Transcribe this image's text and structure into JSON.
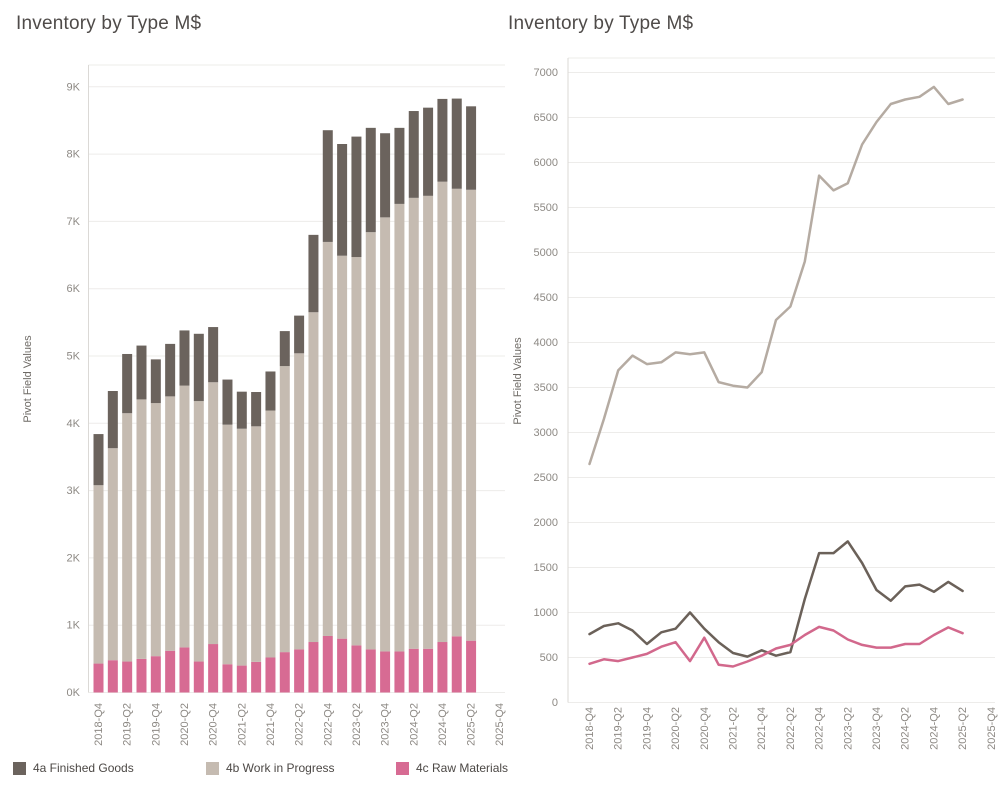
{
  "left_chart": {
    "title": "Inventory by Type M$",
    "y_axis_title": "Pivot Field Values"
  },
  "right_chart": {
    "title": "Inventory by Type M$",
    "y_axis_title": "Pivot Field Values"
  },
  "legend": {
    "items": [
      {
        "label": "4a Finished Goods",
        "color": "#6b635d"
      },
      {
        "label": "4b Work in Progress",
        "color": "#c5bbb1"
      },
      {
        "label": "4c Raw Materials",
        "color": "#d76b93"
      }
    ]
  },
  "chart_data": [
    {
      "type": "bar",
      "stacked": true,
      "title": "Inventory by Type M$",
      "xlabel": "",
      "ylabel": "Pivot Field Values",
      "grid": true,
      "ylim": [
        0,
        9000
      ],
      "ytick_step": 1000,
      "ytick_format": "K",
      "categories": [
        "2018-Q4",
        "2019-Q1",
        "2019-Q2",
        "2019-Q3",
        "2019-Q4",
        "2020-Q1",
        "2020-Q2",
        "2020-Q3",
        "2020-Q4",
        "2021-Q1",
        "2021-Q2",
        "2021-Q3",
        "2021-Q4",
        "2022-Q1",
        "2022-Q2",
        "2022-Q3",
        "2022-Q4",
        "2023-Q1",
        "2023-Q2",
        "2023-Q3",
        "2023-Q4",
        "2024-Q1",
        "2024-Q2",
        "2024-Q3",
        "2024-Q4",
        "2025-Q1",
        "2025-Q2"
      ],
      "axis_extra_categories": [
        "2025-Q3",
        "2025-Q4"
      ],
      "x_labels_every": 2,
      "stack_order_bottom_to_top": [
        "4c Raw Materials",
        "4b Work in Progress",
        "4a Finished Goods"
      ],
      "series": [
        {
          "name": "4a Finished Goods",
          "color": "#6b635d",
          "values": [
            760,
            850,
            880,
            800,
            650,
            780,
            820,
            1000,
            820,
            670,
            550,
            510,
            580,
            520,
            560,
            1150,
            1660,
            1660,
            1790,
            1550,
            1250,
            1130,
            1290,
            1310,
            1230,
            1340,
            1240
          ]
        },
        {
          "name": "4b Work in Progress",
          "color": "#c5bbb1",
          "values": [
            2650,
            3150,
            3690,
            3855,
            3760,
            3780,
            3890,
            3870,
            3890,
            3560,
            3520,
            3500,
            3670,
            4250,
            4400,
            4900,
            5855,
            5690,
            5770,
            6200,
            6450,
            6650,
            6700,
            6730,
            6840,
            6650,
            6700
          ]
        },
        {
          "name": "4c Raw Materials",
          "color": "#d76b93",
          "values": [
            430,
            480,
            460,
            500,
            540,
            620,
            670,
            460,
            720,
            420,
            400,
            455,
            520,
            600,
            640,
            750,
            840,
            800,
            700,
            640,
            610,
            610,
            650,
            650,
            750,
            835,
            770
          ]
        }
      ]
    },
    {
      "type": "line",
      "title": "Inventory by Type M$",
      "xlabel": "",
      "ylabel": "Pivot Field Values",
      "grid": true,
      "ylim": [
        0,
        7000
      ],
      "ytick_step": 500,
      "categories": [
        "2018-Q4",
        "2019-Q1",
        "2019-Q2",
        "2019-Q3",
        "2019-Q4",
        "2020-Q1",
        "2020-Q2",
        "2020-Q3",
        "2020-Q4",
        "2021-Q1",
        "2021-Q2",
        "2021-Q3",
        "2021-Q4",
        "2022-Q1",
        "2022-Q2",
        "2022-Q3",
        "2022-Q4",
        "2023-Q1",
        "2023-Q2",
        "2023-Q3",
        "2023-Q4",
        "2024-Q1",
        "2024-Q2",
        "2024-Q3",
        "2024-Q4",
        "2025-Q1",
        "2025-Q2"
      ],
      "axis_extra_categories": [
        "2025-Q3",
        "2025-Q4"
      ],
      "x_labels_every": 2,
      "series": [
        {
          "name": "4a Finished Goods",
          "color": "#6b6159",
          "values": [
            760,
            850,
            880,
            800,
            650,
            780,
            820,
            1000,
            820,
            670,
            550,
            510,
            580,
            520,
            560,
            1150,
            1660,
            1660,
            1790,
            1550,
            1250,
            1130,
            1290,
            1310,
            1230,
            1340,
            1240
          ]
        },
        {
          "name": "4b Work in Progress",
          "color": "#b5aba2",
          "values": [
            2650,
            3150,
            3690,
            3855,
            3760,
            3780,
            3890,
            3870,
            3890,
            3560,
            3520,
            3500,
            3670,
            4250,
            4400,
            4900,
            5855,
            5690,
            5770,
            6200,
            6450,
            6650,
            6700,
            6730,
            6840,
            6650,
            6700
          ]
        },
        {
          "name": "4c Raw Materials",
          "color": "#d2688c",
          "values": [
            430,
            480,
            460,
            500,
            540,
            620,
            670,
            460,
            720,
            420,
            400,
            455,
            520,
            600,
            640,
            750,
            840,
            800,
            700,
            640,
            610,
            610,
            650,
            650,
            750,
            835,
            770
          ]
        }
      ]
    }
  ]
}
